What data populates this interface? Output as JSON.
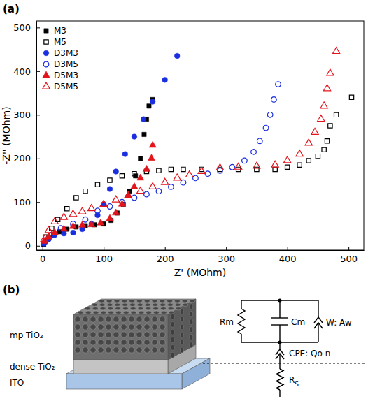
{
  "chart_data": {
    "type": "scatter",
    "panel_label": "(a)",
    "x_label": "Z' (MOhm)",
    "y_label": "-Z'' (MOhm)",
    "xlim": [
      -10,
      525
    ],
    "ylim": [
      -10,
      515
    ],
    "xticks": [
      0,
      100,
      200,
      300,
      400,
      500
    ],
    "yticks": [
      0,
      100,
      200,
      300,
      400,
      500
    ],
    "grid": false,
    "legend": "upper left",
    "series": [
      {
        "name": "M3",
        "color": "#000000",
        "marker": "square",
        "x": [
          2,
          5,
          10,
          18,
          28,
          40,
          55,
          70,
          85,
          100,
          112,
          122,
          132,
          142,
          152,
          160,
          166,
          170,
          174,
          180
        ],
        "values": [
          3,
          10,
          18,
          25,
          32,
          38,
          43,
          46,
          48,
          50,
          58,
          75,
          95,
          125,
          160,
          200,
          255,
          290,
          320,
          335
        ]
      },
      {
        "name": "M5",
        "color": "#000000",
        "marker": "square-open",
        "x": [
          5,
          15,
          25,
          40,
          55,
          70,
          90,
          110,
          130,
          150,
          170,
          190,
          210,
          230,
          260,
          290,
          320,
          350,
          380,
          400,
          420,
          435,
          450,
          460,
          465,
          470,
          480,
          505
        ],
        "values": [
          20,
          40,
          60,
          85,
          110,
          125,
          140,
          150,
          160,
          165,
          170,
          172,
          175,
          175,
          175,
          175,
          175,
          175,
          175,
          180,
          185,
          195,
          205,
          220,
          240,
          275,
          300,
          340
        ]
      },
      {
        "name": "D3M3",
        "color": "#1a2fe0",
        "marker": "circle",
        "x": [
          2,
          10,
          20,
          35,
          50,
          65,
          80,
          90,
          100,
          110,
          120,
          135,
          150,
          165,
          180,
          200,
          220
        ],
        "values": [
          5,
          15,
          25,
          28,
          30,
          38,
          50,
          70,
          95,
          130,
          170,
          210,
          250,
          290,
          330,
          380,
          435
        ]
      },
      {
        "name": "D3M5",
        "color": "#1a2fe0",
        "marker": "circle-open",
        "x": [
          5,
          15,
          30,
          50,
          70,
          90,
          110,
          130,
          150,
          170,
          190,
          210,
          230,
          250,
          270,
          290,
          310,
          330,
          345,
          355,
          365,
          372,
          378,
          385
        ],
        "values": [
          10,
          25,
          40,
          50,
          60,
          80,
          90,
          100,
          110,
          118,
          125,
          135,
          145,
          155,
          165,
          172,
          180,
          195,
          215,
          240,
          270,
          300,
          335,
          370
        ]
      },
      {
        "name": "D5M3",
        "color": "#e3141c",
        "marker": "triangle",
        "x": [
          3,
          10,
          20,
          35,
          50,
          65,
          80,
          95,
          110,
          120,
          130,
          140,
          150,
          160,
          170,
          178,
          180
        ],
        "values": [
          10,
          20,
          30,
          38,
          44,
          47,
          48,
          52,
          62,
          75,
          95,
          115,
          135,
          155,
          175,
          200,
          230
        ]
      },
      {
        "name": "D5M5",
        "color": "#e3141c",
        "marker": "triangle-open",
        "x": [
          3,
          10,
          20,
          35,
          50,
          65,
          80,
          100,
          120,
          140,
          160,
          180,
          200,
          220,
          240,
          260,
          290,
          320,
          350,
          380,
          400,
          420,
          435,
          445,
          455,
          460,
          465,
          470,
          480
        ],
        "values": [
          15,
          35,
          55,
          65,
          72,
          78,
          85,
          95,
          105,
          115,
          125,
          135,
          145,
          155,
          162,
          170,
          178,
          180,
          182,
          185,
          195,
          210,
          235,
          260,
          290,
          320,
          360,
          395,
          445
        ]
      }
    ]
  },
  "diagram": {
    "panel_label": "(b)",
    "layers": [
      "mp TiO₂",
      "dense TiO₂",
      "ITO"
    ],
    "circuit": [
      "Rm",
      "Cm",
      "W: Aw",
      "CPE: Qo n",
      "RS"
    ]
  }
}
